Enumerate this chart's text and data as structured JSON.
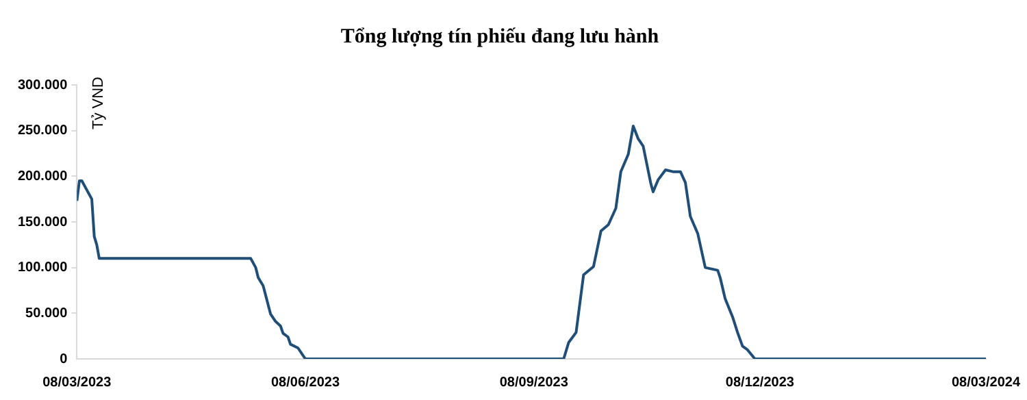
{
  "chart_data": {
    "type": "line",
    "title": "Tổng lượng tín phiếu đang lưu hành",
    "ylabel": "Tỷ VND",
    "x": [
      "2023-03-08",
      "2023-03-09",
      "2023-03-10",
      "2023-03-12",
      "2023-03-14",
      "2023-03-15",
      "2023-03-16",
      "2023-03-17",
      "2023-05-17",
      "2023-05-19",
      "2023-05-20",
      "2023-05-22",
      "2023-05-25",
      "2023-05-27",
      "2023-05-29",
      "2023-05-30",
      "2023-06-01",
      "2023-06-02",
      "2023-06-05",
      "2023-06-08",
      "2023-09-20",
      "2023-09-22",
      "2023-09-25",
      "2023-09-28",
      "2023-10-02",
      "2023-10-05",
      "2023-10-08",
      "2023-10-11",
      "2023-10-13",
      "2023-10-16",
      "2023-10-18",
      "2023-10-20",
      "2023-10-22",
      "2023-10-25",
      "2023-10-26",
      "2023-10-28",
      "2023-10-31",
      "2023-11-03",
      "2023-11-06",
      "2023-11-08",
      "2023-11-10",
      "2023-11-13",
      "2023-11-16",
      "2023-11-21",
      "2023-11-22",
      "2023-11-24",
      "2023-11-27",
      "2023-11-29",
      "2023-12-01",
      "2023-12-03",
      "2023-12-06",
      "2024-03-08"
    ],
    "series": [
      {
        "color": "#1f4e79",
        "values": [
          173000,
          195000,
          195000,
          185000,
          175000,
          134000,
          125000,
          110000,
          110000,
          100000,
          89000,
          80000,
          49000,
          41000,
          36000,
          28000,
          24000,
          16000,
          12000,
          0,
          0,
          18000,
          29000,
          92000,
          101000,
          140000,
          147000,
          165000,
          205000,
          224000,
          255000,
          241000,
          233000,
          193000,
          183000,
          196000,
          207000,
          205000,
          205000,
          193000,
          156000,
          137000,
          100000,
          97000,
          89000,
          66000,
          46000,
          29000,
          14000,
          10000,
          0,
          0
        ]
      }
    ],
    "xlim": [
      "2023-03-08",
      "2024-03-08"
    ],
    "xticks": [
      {
        "value": "2023-03-08",
        "label": "08/03/2023"
      },
      {
        "value": "2023-06-08",
        "label": "08/06/2023"
      },
      {
        "value": "2023-09-08",
        "label": "08/09/2023"
      },
      {
        "value": "2023-12-08",
        "label": "08/12/2023"
      },
      {
        "value": "2024-03-08",
        "label": "08/03/2024"
      }
    ],
    "ylim": [
      0,
      300000
    ],
    "yticks": [
      {
        "value": 0,
        "label": "0"
      },
      {
        "value": 50000,
        "label": "50.000"
      },
      {
        "value": 100000,
        "label": "100.000"
      },
      {
        "value": 150000,
        "label": "150.000"
      },
      {
        "value": 200000,
        "label": "200.000"
      },
      {
        "value": 250000,
        "label": "250.000"
      },
      {
        "value": 300000,
        "label": "300.000"
      }
    ],
    "grid": false,
    "legend": false,
    "marker": "none",
    "line_style": "solid"
  }
}
